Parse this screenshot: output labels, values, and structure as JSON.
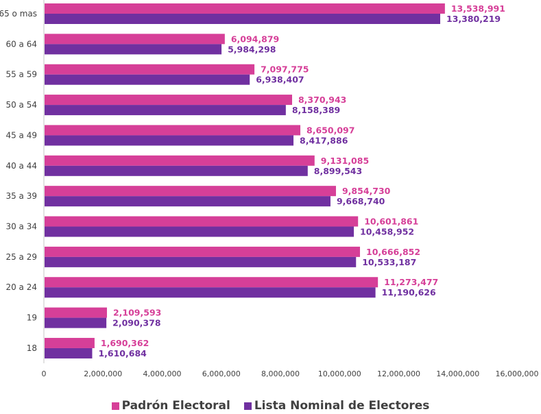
{
  "chart_data": {
    "type": "bar",
    "orientation": "horizontal",
    "categories": [
      "65 o mas",
      "60 a 64",
      "55 a 59",
      "50 a 54",
      "45 a 49",
      "40 a 44",
      "35 a 39",
      "30 a 34",
      "25 a 29",
      "20 a 24",
      "19",
      "18"
    ],
    "series": [
      {
        "name": "Padrón Electoral",
        "color": "#D63F98",
        "values": [
          13538991,
          6094879,
          7097775,
          8370943,
          8650097,
          9131085,
          9854730,
          10601861,
          10666852,
          11273477,
          2109593,
          1690362
        ]
      },
      {
        "name": "Lista Nominal de Electores",
        "color": "#7030A0",
        "values": [
          13380219,
          5984298,
          6938407,
          8158389,
          8417886,
          8899543,
          9668740,
          10458952,
          10533187,
          11190626,
          2090378,
          1610684
        ]
      }
    ],
    "value_labels": [
      [
        "13,538,991",
        "6,094,879",
        "7,097,775",
        "8,370,943",
        "8,650,097",
        "9,131,085",
        "9,854,730",
        "10,601,861",
        "10,666,852",
        "11,273,477",
        "2,109,593",
        "1,690,362"
      ],
      [
        "13,380,219",
        "5,984,298",
        "6,938,407",
        "8,158,389",
        "8,417,886",
        "8,899,543",
        "9,668,740",
        "10,458,952",
        "10,533,187",
        "11,190,626",
        "2,090,378",
        "1,610,684"
      ]
    ],
    "xlim": [
      0,
      16000000
    ],
    "x_ticks": [
      "0",
      "2,000,000",
      "4,000,000",
      "6,000,000",
      "8,000,000",
      "10,000,000",
      "12,000,000",
      "14,000,000",
      "16,000,000"
    ],
    "grid": false,
    "legend_position": "bottom"
  }
}
